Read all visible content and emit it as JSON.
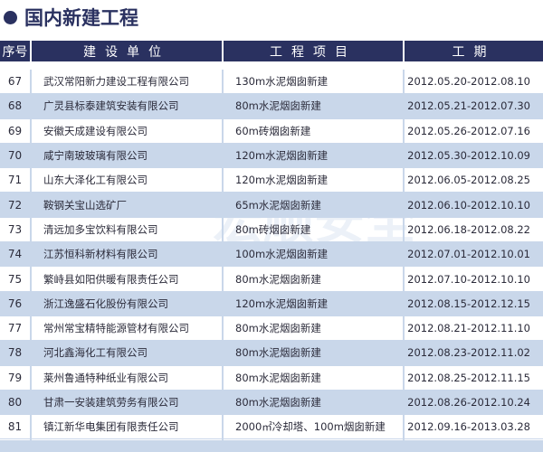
{
  "title": "国内新建工程",
  "columns": [
    "序号",
    "建设单位",
    "工程项目",
    "工期"
  ],
  "rows": [
    {
      "no": "67",
      "company": "武汉常阳新力建设工程有限公司",
      "project": "130m水泥烟囱新建",
      "period": "2012.05.20-2012.08.10"
    },
    {
      "no": "68",
      "company": "广灵县标泰建筑安装有限公司",
      "project": "80m水泥烟囱新建",
      "period": "2012.05.21-2012.07.30"
    },
    {
      "no": "69",
      "company": "安徽天成建设有限公司",
      "project": "60m砖烟囱新建",
      "period": "2012.05.26-2012.07.16"
    },
    {
      "no": "70",
      "company": "咸宁南玻玻璃有限公司",
      "project": "120m水泥烟囱新建",
      "period": "2012.05.30-2012.10.09"
    },
    {
      "no": "71",
      "company": "山东大泽化工有限公司",
      "project": "120m水泥烟囱新建",
      "period": "2012.06.05-2012.08.25"
    },
    {
      "no": "72",
      "company": "鞍钢关宝山选矿厂",
      "project": "65m水泥烟囱新建",
      "period": "2012.06.10-2012.10.10"
    },
    {
      "no": "73",
      "company": "清远加多宝饮料有限公司",
      "project": "80m砖烟囱新建",
      "period": "2012.06.18-2012.08.22"
    },
    {
      "no": "74",
      "company": "江苏恒科新材料有限公司",
      "project": "100m水泥烟囱新建",
      "period": "2012.07.01-2012.10.01"
    },
    {
      "no": "75",
      "company": "繁峙县如阳供暖有限责任公司",
      "project": "80m水泥烟囱新建",
      "period": "2012.07.10-2012.10.10"
    },
    {
      "no": "76",
      "company": "浙江逸盛石化股份有限公司",
      "project": "120m水泥烟囱新建",
      "period": "2012.08.15-2012.12.15"
    },
    {
      "no": "77",
      "company": "常州常宝精特能源管材有限公司",
      "project": "80m水泥烟囱新建",
      "period": "2012.08.21-2012.11.10"
    },
    {
      "no": "78",
      "company": "河北鑫海化工有限公司",
      "project": "80m水泥烟囱新建",
      "period": "2012.08.23-2012.11.02"
    },
    {
      "no": "79",
      "company": "莱州鲁通特种纸业有限公司",
      "project": "80m水泥烟囱新建",
      "period": "2012.08.25-2012.11.15"
    },
    {
      "no": "80",
      "company": "甘肃一安装建筑劳务有限公司",
      "project": "80m水泥烟囱新建",
      "period": "2012.08.26-2012.10.24"
    },
    {
      "no": "81",
      "company": "镇江新华电集团有限责任公司",
      "project": "2000㎡冷却塔、100m烟囱新建",
      "period": "2012.09.16-2013.03.28"
    }
  ],
  "watermark": "宏顺安全",
  "colors": {
    "header": "#2a3160",
    "alt_row": "#c9d7ea"
  }
}
